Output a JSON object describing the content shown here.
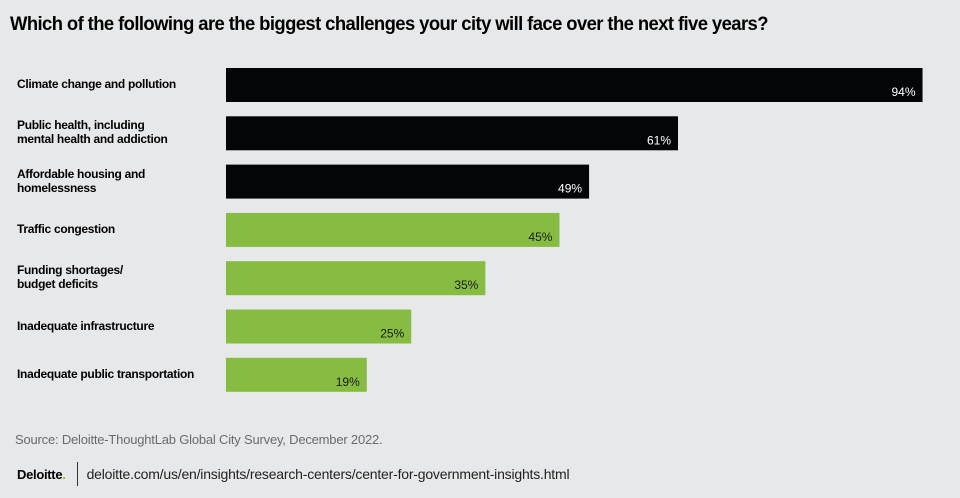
{
  "chart_data": {
    "type": "bar",
    "orientation": "horizontal",
    "title": "Which of the following are the biggest challenges your city will face over the next five years?",
    "xlabel": "",
    "ylabel": "",
    "xlim": [
      0,
      100
    ],
    "grid": false,
    "legend": "none",
    "categories": [
      "Climate change and pollution",
      "Public health, including\nmental health and addiction",
      "Affordable housing and\nhomelessness",
      "Traffic congestion",
      "Funding shortages/\nbudget deficits",
      "Inadequate infrastructure",
      "Inadequate public transportation"
    ],
    "values": [
      94,
      61,
      49,
      45,
      35,
      25,
      19
    ],
    "value_labels": [
      "94%",
      "61%",
      "49%",
      "45%",
      "35%",
      "25%",
      "19%"
    ],
    "bar_colors": [
      "#030608",
      "#030608",
      "#030608",
      "#86bc41",
      "#86bc41",
      "#86bc41",
      "#86bc41"
    ],
    "label_colors": [
      "#ffffff",
      "#ffffff",
      "#ffffff",
      "#1a1a1a",
      "#1a1a1a",
      "#1a1a1a",
      "#1a1a1a"
    ]
  },
  "source": "Source: Deloitte-ThoughtLab Global City Survey, December 2022.",
  "footer": {
    "logo_text": "Deloitte",
    "logo_dot": ".",
    "url": "deloitte.com/us/en/insights/research-centers/center-for-government-insights.html"
  },
  "colors": {
    "background": "#e7e8ea",
    "accent_green": "#86bc25"
  }
}
